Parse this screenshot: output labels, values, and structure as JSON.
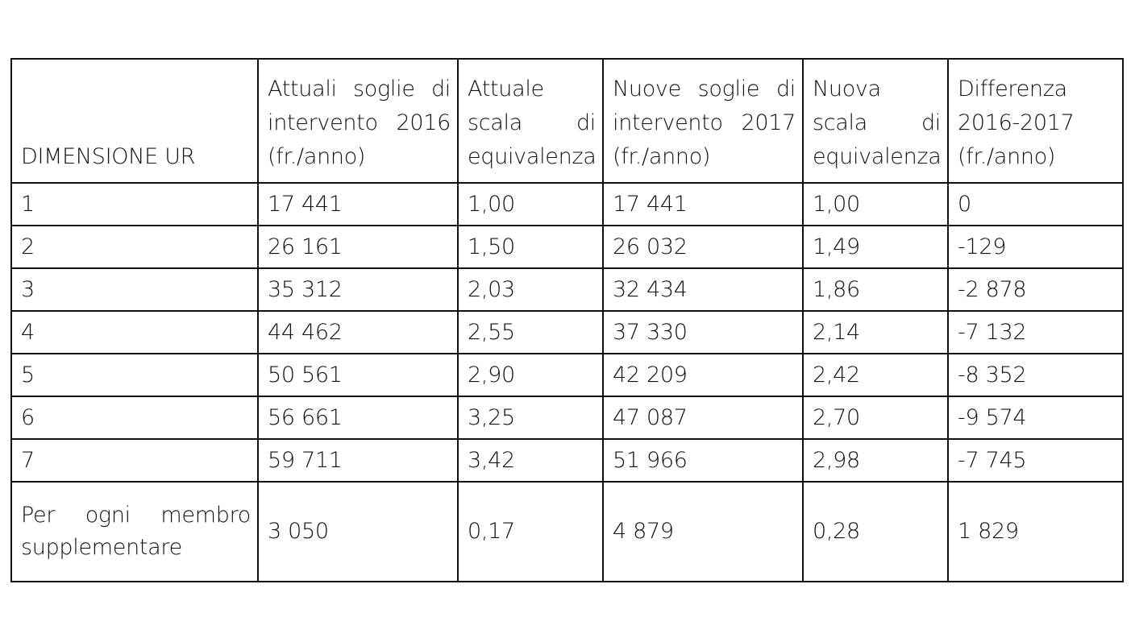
{
  "table": {
    "headers": [
      {
        "lines": [
          "DIMENSIONE UR"
        ]
      },
      {
        "lines": [
          "Attuali soglie di",
          "intervento 2016",
          "(fr./anno)"
        ]
      },
      {
        "lines": [
          "Attuale",
          "scala di",
          "equivalenza"
        ]
      },
      {
        "lines": [
          "Nuove soglie di",
          "intervento 2017",
          "(fr./anno)"
        ]
      },
      {
        "lines": [
          "Nuova",
          "scala di",
          "equivalenza"
        ]
      },
      {
        "lines": [
          "Differenza",
          "2016-2017",
          "(fr./anno)"
        ]
      }
    ],
    "rows": [
      [
        "1",
        "17 441",
        "1,00",
        "17 441",
        "1,00",
        "0"
      ],
      [
        "2",
        "26 161",
        "1,50",
        "26 032",
        "1,49",
        "-129"
      ],
      [
        "3",
        "35 312",
        "2,03",
        "32 434",
        "1,86",
        "-2 878"
      ],
      [
        "4",
        "44 462",
        "2,55",
        "37 330",
        "2,14",
        "-7 132"
      ],
      [
        "5",
        "50 561",
        "2,90",
        "42 209",
        "2,42",
        "-8 352"
      ],
      [
        "6",
        "56 661",
        "3,25",
        "47 087",
        "2,70",
        "-9 574"
      ],
      [
        "7",
        "59 711",
        "3,42",
        "51 966",
        "2,98",
        "-7 745"
      ]
    ],
    "last_row": {
      "label_lines": [
        "Per ogni membro",
        "supplementare"
      ],
      "values": [
        "3 050",
        "0,17",
        "4 879",
        "0,28",
        "1 829"
      ]
    }
  }
}
